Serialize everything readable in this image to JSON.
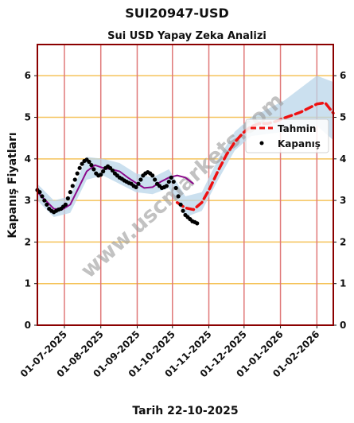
{
  "page": {
    "title": "SUI20947-USD"
  },
  "watermark": "www.uscmarkets.com",
  "chart_data": {
    "type": "line",
    "title": "Sui USD Yapay Zeka Analizi",
    "xlabel": "Tarih 22-10-2025",
    "ylabel": "Kapanış Fiyatları",
    "ylim": [
      0,
      6.75
    ],
    "xlim": [
      "2025-06-08",
      "2026-02-15"
    ],
    "yticks": [
      0,
      1,
      2,
      3,
      4,
      5,
      6
    ],
    "xticks": [
      "01-07-2025",
      "01-08-2025",
      "01-09-2025",
      "01-10-2025",
      "01-11-2025",
      "01-12-2025",
      "01-01-2026",
      "01-02-2026"
    ],
    "grid": true,
    "legend_position": "center-right",
    "colors": {
      "actual": "#000000",
      "fit_line": "#8b0a8b",
      "forecast": "#ee1111",
      "band": "#b9d6ea",
      "hgrid": "#f5c35a",
      "vgrid": "#e07878",
      "frame": "#8b0000"
    },
    "series": [
      {
        "name": "Kapanış",
        "style": "points",
        "x": [
          "2025-06-08",
          "2025-06-10",
          "2025-06-12",
          "2025-06-14",
          "2025-06-16",
          "2025-06-18",
          "2025-06-20",
          "2025-06-22",
          "2025-06-24",
          "2025-06-26",
          "2025-06-28",
          "2025-06-30",
          "2025-07-02",
          "2025-07-04",
          "2025-07-06",
          "2025-07-08",
          "2025-07-10",
          "2025-07-12",
          "2025-07-14",
          "2025-07-16",
          "2025-07-18",
          "2025-07-20",
          "2025-07-22",
          "2025-07-24",
          "2025-07-26",
          "2025-07-28",
          "2025-07-30",
          "2025-08-01",
          "2025-08-03",
          "2025-08-05",
          "2025-08-07",
          "2025-08-09",
          "2025-08-11",
          "2025-08-13",
          "2025-08-15",
          "2025-08-17",
          "2025-08-19",
          "2025-08-21",
          "2025-08-23",
          "2025-08-25",
          "2025-08-27",
          "2025-08-29",
          "2025-08-31",
          "2025-09-02",
          "2025-09-04",
          "2025-09-06",
          "2025-09-08",
          "2025-09-10",
          "2025-09-12",
          "2025-09-14",
          "2025-09-16",
          "2025-09-18",
          "2025-09-20",
          "2025-09-22",
          "2025-09-24",
          "2025-09-26",
          "2025-09-28",
          "2025-09-30",
          "2025-10-02",
          "2025-10-04",
          "2025-10-06",
          "2025-10-08",
          "2025-10-10",
          "2025-10-12",
          "2025-10-14",
          "2025-10-16",
          "2025-10-18",
          "2025-10-20",
          "2025-10-22"
        ],
        "y": [
          3.25,
          3.2,
          3.1,
          3.0,
          2.9,
          2.8,
          2.75,
          2.72,
          2.75,
          2.78,
          2.8,
          2.85,
          2.9,
          3.05,
          3.2,
          3.35,
          3.5,
          3.65,
          3.78,
          3.88,
          3.95,
          3.98,
          3.93,
          3.85,
          3.75,
          3.65,
          3.6,
          3.62,
          3.7,
          3.78,
          3.82,
          3.78,
          3.72,
          3.65,
          3.6,
          3.55,
          3.52,
          3.48,
          3.45,
          3.42,
          3.4,
          3.35,
          3.32,
          3.4,
          3.5,
          3.6,
          3.65,
          3.68,
          3.65,
          3.6,
          3.5,
          3.4,
          3.35,
          3.3,
          3.32,
          3.35,
          3.45,
          3.55,
          3.45,
          3.3,
          3.1,
          2.9,
          2.75,
          2.65,
          2.6,
          2.55,
          2.5,
          2.48,
          2.45
        ]
      },
      {
        "name": "",
        "style": "line",
        "x": [
          "2025-06-08",
          "2025-06-15",
          "2025-06-22",
          "2025-06-29",
          "2025-07-06",
          "2025-07-13",
          "2025-07-20",
          "2025-07-27",
          "2025-08-03",
          "2025-08-10",
          "2025-08-17",
          "2025-08-24",
          "2025-08-31",
          "2025-09-07",
          "2025-09-14",
          "2025-09-21",
          "2025-09-28",
          "2025-10-05",
          "2025-10-12",
          "2025-10-19"
        ],
        "y": [
          3.2,
          3.0,
          2.8,
          2.78,
          2.9,
          3.3,
          3.7,
          3.85,
          3.78,
          3.75,
          3.7,
          3.55,
          3.42,
          3.3,
          3.32,
          3.45,
          3.55,
          3.6,
          3.55,
          3.4
        ]
      },
      {
        "name": "Tahmin",
        "style": "dashed",
        "x": [
          "2025-10-05",
          "2025-10-12",
          "2025-10-19",
          "2025-10-26",
          "2025-11-02",
          "2025-11-09",
          "2025-11-16",
          "2025-11-23",
          "2025-11-30",
          "2025-12-07",
          "2025-12-14",
          "2025-12-21",
          "2025-12-28",
          "2026-01-04",
          "2026-01-11",
          "2026-01-18",
          "2026-01-25",
          "2026-02-01",
          "2026-02-08",
          "2026-02-15"
        ],
        "y": [
          2.95,
          2.82,
          2.78,
          2.95,
          3.3,
          3.72,
          4.1,
          4.4,
          4.62,
          4.78,
          4.85,
          4.85,
          4.9,
          4.98,
          5.05,
          5.12,
          5.22,
          5.32,
          5.35,
          5.1
        ]
      }
    ],
    "band": {
      "x": [
        "2025-06-08",
        "2025-06-22",
        "2025-07-06",
        "2025-07-20",
        "2025-08-03",
        "2025-08-17",
        "2025-08-31",
        "2025-09-14",
        "2025-09-28",
        "2025-10-12",
        "2025-10-26",
        "2025-11-09",
        "2025-11-23",
        "2025-12-07",
        "2025-12-21",
        "2026-01-04",
        "2026-01-18",
        "2026-02-01",
        "2026-02-15"
      ],
      "lower": [
        3.0,
        2.6,
        2.7,
        3.5,
        3.6,
        3.4,
        3.2,
        3.15,
        3.3,
        2.6,
        2.75,
        3.5,
        4.2,
        4.55,
        4.6,
        4.65,
        4.7,
        4.8,
        4.45
      ],
      "upper": [
        3.4,
        3.0,
        3.1,
        4.05,
        4.0,
        3.9,
        3.65,
        3.55,
        3.75,
        3.1,
        3.2,
        4.0,
        4.65,
        5.0,
        5.2,
        5.4,
        5.7,
        6.0,
        5.85
      ]
    }
  }
}
